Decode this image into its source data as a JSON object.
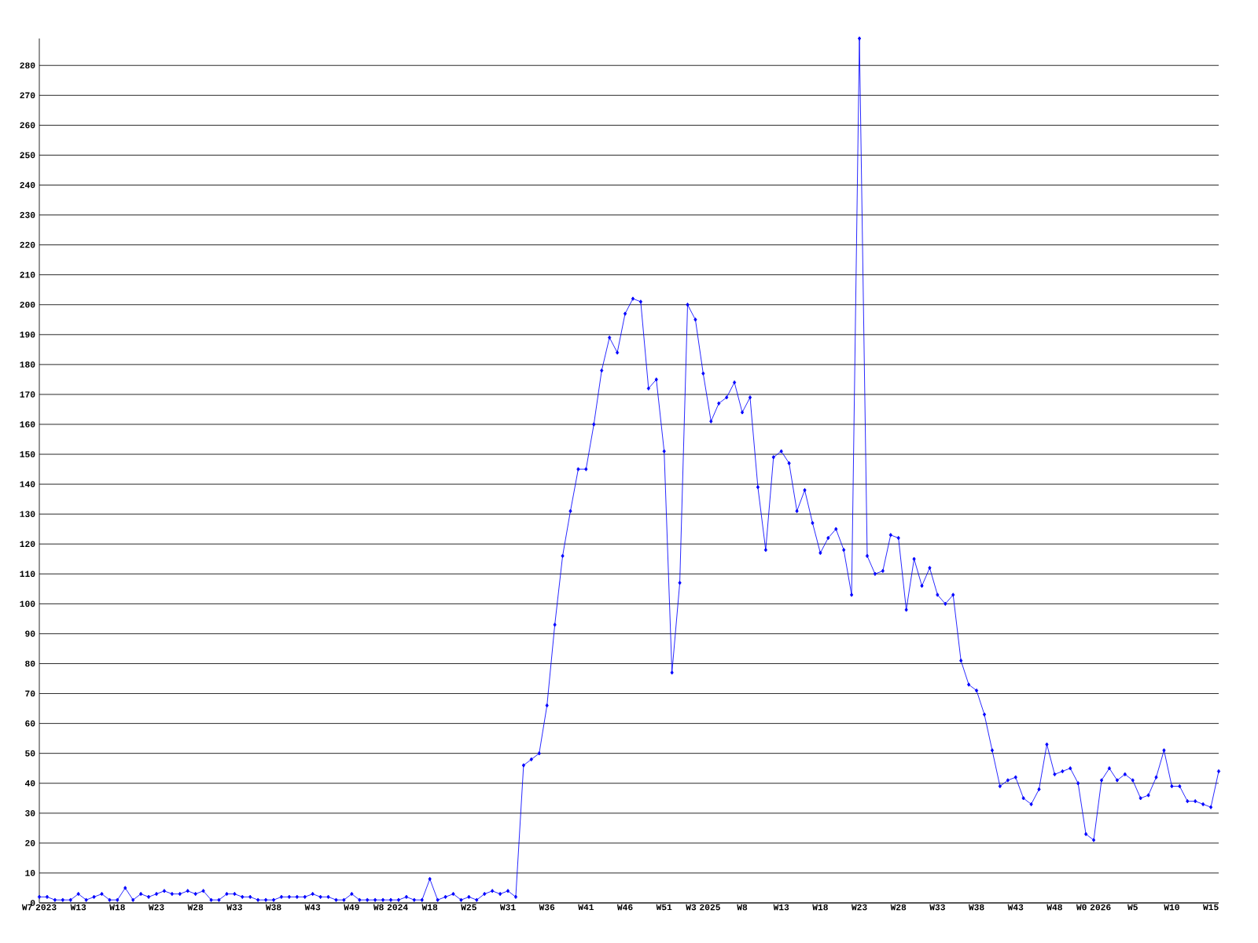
{
  "chart_data": {
    "type": "line",
    "categories": [
      "W7 2023",
      null,
      null,
      null,
      null,
      "W13",
      null,
      null,
      null,
      null,
      "W18",
      null,
      null,
      null,
      null,
      "W23",
      null,
      null,
      null,
      null,
      "W28",
      null,
      null,
      null,
      null,
      "W33",
      null,
      null,
      null,
      null,
      "W38",
      null,
      null,
      null,
      null,
      "W43",
      null,
      null,
      null,
      null,
      "W49",
      null,
      null,
      null,
      null,
      "W8 2024",
      null,
      null,
      null,
      null,
      "W18",
      null,
      null,
      null,
      null,
      "W25",
      null,
      null,
      null,
      null,
      "W31",
      null,
      null,
      null,
      null,
      "W36",
      null,
      null,
      null,
      null,
      "W41",
      null,
      null,
      null,
      null,
      "W46",
      null,
      null,
      null,
      null,
      "W51",
      null,
      null,
      null,
      null,
      "W3 2025",
      null,
      null,
      null,
      null,
      "W8",
      null,
      null,
      null,
      null,
      "W13",
      null,
      null,
      null,
      null,
      "W18",
      null,
      null,
      null,
      null,
      "W23",
      null,
      null,
      null,
      null,
      "W28",
      null,
      null,
      null,
      null,
      "W33",
      null,
      null,
      null,
      null,
      "W38",
      null,
      null,
      null,
      null,
      "W43",
      null,
      null,
      null,
      null,
      "W48",
      null,
      null,
      null,
      null,
      "W0 2026",
      null,
      null,
      null,
      null,
      "W5",
      null,
      null,
      null,
      null,
      "W10",
      null,
      null,
      null,
      null,
      "W15",
      null
    ],
    "values": [
      2,
      2,
      1,
      1,
      1,
      3,
      1,
      2,
      3,
      1,
      1,
      5,
      1,
      3,
      2,
      3,
      4,
      3,
      3,
      4,
      3,
      4,
      1,
      1,
      3,
      3,
      2,
      2,
      1,
      1,
      1,
      2,
      2,
      2,
      2,
      3,
      2,
      2,
      1,
      1,
      3,
      1,
      1,
      1,
      1,
      1,
      1,
      2,
      1,
      1,
      8,
      1,
      2,
      3,
      1,
      2,
      1,
      3,
      4,
      3,
      4,
      2,
      46,
      48,
      50,
      66,
      93,
      116,
      131,
      145,
      145,
      160,
      178,
      189,
      184,
      197,
      202,
      201,
      172,
      175,
      151,
      77,
      107,
      200,
      195,
      177,
      161,
      167,
      169,
      174,
      164,
      169,
      139,
      118,
      149,
      151,
      147,
      131,
      138,
      127,
      117,
      122,
      125,
      118,
      103,
      289,
      116,
      110,
      111,
      123,
      122,
      98,
      115,
      106,
      112,
      103,
      100,
      103,
      81,
      73,
      71,
      63,
      51,
      39,
      41,
      42,
      35,
      33,
      38,
      53,
      43,
      44,
      45,
      40,
      23,
      21,
      41,
      45,
      41,
      43,
      41,
      35,
      36,
      42,
      51,
      39,
      39,
      34,
      34,
      33,
      32,
      44
    ],
    "color": "#0000ff",
    "ylim": [
      0,
      289
    ],
    "yticks": [
      0,
      10,
      20,
      30,
      40,
      50,
      60,
      70,
      80,
      90,
      100,
      110,
      120,
      130,
      140,
      150,
      160,
      170,
      180,
      190,
      200,
      210,
      220,
      230,
      240,
      250,
      260,
      270,
      280
    ],
    "grid": "y",
    "marker": "diamond"
  }
}
